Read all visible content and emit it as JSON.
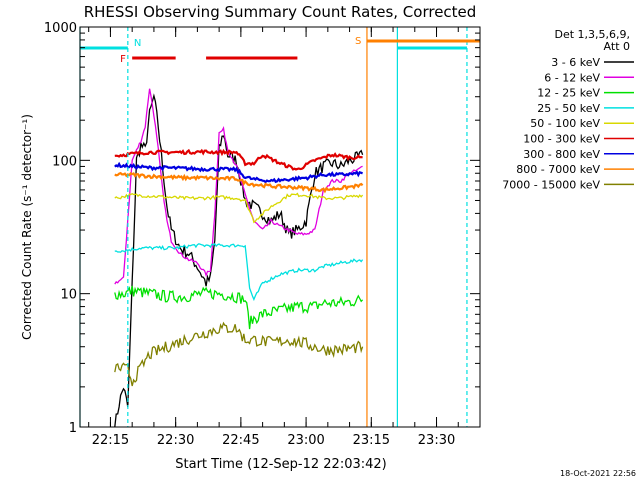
{
  "chart_data": {
    "type": "line",
    "title": "RHESSI Observing Summary Count Rates, Corrected",
    "ylabel": "Corrected Count Rate (s⁻¹ detector⁻¹)",
    "xlabel": "Start Time (12-Sep-12 22:03:42)",
    "footer_date": "18-Oct-2021 22:56",
    "y_scale": "log",
    "ylim": [
      1,
      1000
    ],
    "y_ticks": [
      1,
      10,
      100,
      1000
    ],
    "y_tick_labels": [
      "1",
      "10",
      "100",
      "1000"
    ],
    "xlim": [
      "22:08",
      "23:40"
    ],
    "x_ticks": [
      "22:15",
      "22:30",
      "22:45",
      "23:00",
      "23:15",
      "23:30"
    ],
    "legend": {
      "placement": "right",
      "header": [
        "Det 1,3,5,6,9,",
        "Att 0"
      ],
      "entries": [
        {
          "label": "3 - 6 keV",
          "color": "#000000"
        },
        {
          "label": "6 - 12 keV",
          "color": "#e000e0"
        },
        {
          "label": "12 - 25 keV",
          "color": "#00e000"
        },
        {
          "label": "25 - 50 keV",
          "color": "#00e0e0"
        },
        {
          "label": "50 - 100 keV",
          "color": "#d8d800"
        },
        {
          "label": "100 - 300 keV",
          "color": "#e00000"
        },
        {
          "label": "300 - 800 keV",
          "color": "#0000e0"
        },
        {
          "label": "800 - 7000 keV",
          "color": "#ff8000"
        },
        {
          "label": "7000 - 15000 keV",
          "color": "#808000"
        }
      ]
    },
    "series": [
      {
        "name": "3 - 6 keV",
        "color": "#000000",
        "x": [
          "22:16",
          "22:17",
          "22:18",
          "22:19",
          "22:21",
          "22:22",
          "22:23",
          "22:24",
          "22:25",
          "22:26",
          "22:27",
          "22:28",
          "22:29",
          "22:31",
          "22:33",
          "22:35",
          "22:37",
          "22:38",
          "22:39",
          "22:40",
          "22:41",
          "22:42",
          "22:44",
          "22:46",
          "22:48",
          "22:50",
          "22:52",
          "22:54",
          "22:56",
          "22:58",
          "23:00",
          "23:02",
          "23:04",
          "23:06",
          "23:08",
          "23:10",
          "23:12",
          "23:13"
        ],
        "y": [
          1,
          1.5,
          2,
          1.4,
          100,
          130,
          120,
          220,
          300,
          180,
          90,
          45,
          30,
          22,
          20,
          16,
          12,
          13,
          25,
          120,
          160,
          110,
          100,
          50,
          45,
          40,
          35,
          40,
          28,
          30,
          35,
          80,
          90,
          95,
          90,
          100,
          105,
          110
        ]
      },
      {
        "name": "6 - 12 keV",
        "color": "#e000e0",
        "x": [
          "22:16",
          "22:18",
          "22:20",
          "22:22",
          "22:23",
          "22:24",
          "22:25",
          "22:26",
          "22:27",
          "22:28",
          "22:29",
          "22:31",
          "22:33",
          "22:35",
          "22:37",
          "22:38",
          "22:39",
          "22:40",
          "22:41",
          "22:42",
          "22:44",
          "22:46",
          "22:48",
          "22:50",
          "22:52",
          "22:54",
          "22:56",
          "22:58",
          "23:00",
          "23:02",
          "23:04",
          "23:06",
          "23:08",
          "23:10",
          "23:12",
          "23:13"
        ],
        "y": [
          12,
          13,
          100,
          140,
          180,
          350,
          220,
          120,
          60,
          35,
          25,
          20,
          18,
          17,
          14,
          15,
          40,
          160,
          170,
          120,
          90,
          55,
          35,
          30,
          35,
          32,
          30,
          28,
          28,
          30,
          60,
          70,
          70,
          80,
          85,
          90
        ]
      },
      {
        "name": "12 - 25 keV",
        "color": "#00e000",
        "x": [
          "22:16",
          "22:18",
          "22:20",
          "22:24",
          "22:28",
          "22:32",
          "22:36",
          "22:40",
          "22:44",
          "22:46",
          "22:47",
          "22:48",
          "22:50",
          "22:54",
          "22:58",
          "23:02",
          "23:04",
          "23:08",
          "23:13"
        ],
        "y": [
          10,
          10,
          10.5,
          10,
          9.5,
          9.5,
          10,
          10,
          9.5,
          9,
          6,
          6.5,
          7,
          7.5,
          8,
          8,
          8.5,
          8.5,
          9
        ]
      },
      {
        "name": "25 - 50 keV",
        "color": "#00e0e0",
        "x": [
          "22:16",
          "22:18",
          "22:22",
          "22:26",
          "22:30",
          "22:34",
          "22:38",
          "22:42",
          "22:46",
          "22:47",
          "22:48",
          "22:50",
          "22:54",
          "22:58",
          "23:02",
          "23:04",
          "23:08",
          "23:13"
        ],
        "y": [
          21,
          21,
          22,
          22,
          22,
          23,
          23,
          23,
          23,
          11,
          9,
          12,
          14,
          15,
          15,
          16,
          17,
          18
        ]
      },
      {
        "name": "50 - 100 keV",
        "color": "#d8d800",
        "x": [
          "22:16",
          "22:20",
          "22:24",
          "22:28",
          "22:32",
          "22:36",
          "22:40",
          "22:44",
          "22:46",
          "22:48",
          "22:52",
          "22:56",
          "23:00",
          "23:04",
          "23:08",
          "23:13"
        ],
        "y": [
          52,
          55,
          54,
          53,
          52,
          52,
          53,
          52,
          50,
          35,
          45,
          55,
          55,
          52,
          52,
          55
        ]
      },
      {
        "name": "100 - 300 keV",
        "color": "#e00000",
        "x": [
          "22:16",
          "22:20",
          "22:24",
          "22:28",
          "22:32",
          "22:36",
          "22:40",
          "22:44",
          "22:46",
          "22:48",
          "22:50",
          "22:54",
          "22:58",
          "23:02",
          "23:06",
          "23:10",
          "23:13"
        ],
        "y": [
          108,
          112,
          115,
          115,
          115,
          116,
          115,
          115,
          95,
          95,
          110,
          95,
          85,
          100,
          110,
          105,
          105
        ]
      },
      {
        "name": "300 - 800 keV",
        "color": "#0000e0",
        "x": [
          "22:16",
          "22:20",
          "22:24",
          "22:28",
          "22:32",
          "22:36",
          "22:40",
          "22:44",
          "22:46",
          "22:48",
          "22:52",
          "22:56",
          "23:00",
          "23:04",
          "23:08",
          "23:13"
        ],
        "y": [
          92,
          90,
          88,
          88,
          87,
          86,
          86,
          85,
          75,
          72,
          70,
          72,
          74,
          78,
          78,
          80
        ]
      },
      {
        "name": "800 - 7000 keV",
        "color": "#ff8000",
        "x": [
          "22:16",
          "22:20",
          "22:24",
          "22:28",
          "22:32",
          "22:36",
          "22:40",
          "22:44",
          "22:46",
          "22:48",
          "22:52",
          "22:56",
          "23:00",
          "23:04",
          "23:08",
          "23:13"
        ],
        "y": [
          78,
          78,
          76,
          75,
          74,
          74,
          73,
          73,
          68,
          66,
          64,
          63,
          62,
          60,
          62,
          65
        ]
      },
      {
        "name": "7000 - 15000 keV",
        "color": "#808000",
        "x": [
          "22:16",
          "22:19",
          "22:20",
          "22:24",
          "22:28",
          "22:32",
          "22:36",
          "22:40",
          "22:44",
          "22:46",
          "22:48",
          "22:52",
          "22:56",
          "23:00",
          "23:04",
          "23:08",
          "23:13"
        ],
        "y": [
          2.8,
          2.7,
          2.2,
          3.5,
          4,
          4.5,
          5,
          5.5,
          5.5,
          4.5,
          4.5,
          4.3,
          4.5,
          4.2,
          3.8,
          3.8,
          4
        ]
      }
    ],
    "markers": {
      "N": {
        "color": "#00e0e0",
        "segments": [
          [
            "22:08",
            "22:19"
          ],
          [
            "23:21",
            "23:37"
          ]
        ]
      },
      "S": {
        "color": "#ff8000",
        "segments": [
          [
            "23:14",
            "23:40"
          ]
        ]
      },
      "F": {
        "color": "#e00000",
        "segments": [
          [
            "22:20",
            "22:30"
          ],
          [
            "22:37",
            "22:58"
          ]
        ]
      }
    },
    "vertical_lines": [
      {
        "x": "22:08",
        "color": "#00e0e0",
        "style": "solid"
      },
      {
        "x": "22:19",
        "color": "#00e0e0",
        "style": "dashed"
      },
      {
        "x": "23:14",
        "color": "#ff8000",
        "style": "solid"
      },
      {
        "x": "23:21",
        "color": "#00e0e0",
        "style": "solid"
      },
      {
        "x": "23:37",
        "color": "#00e0e0",
        "style": "dashed"
      }
    ]
  }
}
